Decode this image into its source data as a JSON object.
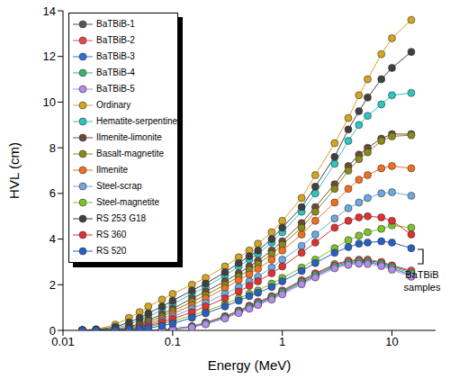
{
  "chart_data": {
    "type": "line",
    "x_label": "Energy (MeV)",
    "y_label": "HVL (cm)",
    "log": "x",
    "marker": "circle",
    "legend": "top-left",
    "grid": false,
    "x": [
      0.015,
      0.02,
      0.03,
      0.04,
      0.05,
      0.06,
      0.08,
      0.1,
      0.15,
      0.2,
      0.3,
      0.4,
      0.5,
      0.6,
      0.8,
      1,
      1.5,
      2,
      3,
      4,
      5,
      6,
      8,
      10,
      15
    ],
    "xlim": [
      0.01,
      25
    ],
    "xticks": [
      0.01,
      0.1,
      1,
      10
    ],
    "ylim": [
      0,
      14
    ],
    "yticks": [
      0,
      2,
      4,
      6,
      8,
      10,
      12,
      14
    ],
    "annotations": [
      {
        "text": "BaTBiB samples"
      }
    ],
    "series": [
      {
        "name": "BaTBiB-1",
        "color": "#555555",
        "values": [
          0,
          0,
          0,
          0,
          0,
          0.01,
          0.03,
          0.06,
          0.17,
          0.33,
          0.6,
          0.85,
          1.05,
          1.22,
          1.47,
          1.72,
          2.17,
          2.47,
          2.87,
          3.02,
          3.07,
          3.06,
          2.97,
          2.82,
          2.58
        ]
      },
      {
        "name": "BaTBiB-2",
        "color": "#e8474a",
        "values": [
          0,
          0,
          0,
          0,
          0,
          0.01,
          0.03,
          0.07,
          0.18,
          0.35,
          0.62,
          0.87,
          1.08,
          1.25,
          1.5,
          1.75,
          2.2,
          2.5,
          2.9,
          3.06,
          3.1,
          3.1,
          3.0,
          2.85,
          2.62
        ]
      },
      {
        "name": "BaTBiB-3",
        "color": "#2f6fd1",
        "values": [
          0,
          0,
          0,
          0,
          0,
          0.01,
          0.02,
          0.05,
          0.15,
          0.3,
          0.56,
          0.8,
          1.0,
          1.16,
          1.4,
          1.64,
          2.08,
          2.38,
          2.78,
          2.93,
          2.98,
          2.97,
          2.88,
          2.72,
          2.42
        ]
      },
      {
        "name": "BaTBiB-4",
        "color": "#3cb371",
        "values": [
          0,
          0,
          0,
          0,
          0,
          0.01,
          0.03,
          0.06,
          0.16,
          0.32,
          0.58,
          0.83,
          1.03,
          1.19,
          1.44,
          1.68,
          2.12,
          2.42,
          2.82,
          2.97,
          3.02,
          3.01,
          2.92,
          2.77,
          2.5
        ]
      },
      {
        "name": "BaTBiB-5",
        "color": "#b48be6",
        "values": [
          0,
          0,
          0,
          0,
          0,
          0.01,
          0.02,
          0.04,
          0.13,
          0.27,
          0.52,
          0.76,
          0.95,
          1.11,
          1.35,
          1.58,
          2.02,
          2.32,
          2.72,
          2.87,
          2.92,
          2.91,
          2.82,
          2.66,
          2.35
        ]
      },
      {
        "name": "Ordinary",
        "color": "#d4a520",
        "values": [
          0.02,
          0.05,
          0.25,
          0.55,
          0.8,
          1.05,
          1.35,
          1.6,
          2.0,
          2.3,
          2.8,
          3.2,
          3.5,
          3.8,
          4.3,
          4.8,
          5.8,
          6.8,
          8.2,
          9.3,
          10.3,
          11.0,
          12.1,
          12.8,
          13.6
        ]
      },
      {
        "name": "Hematite-serpentine",
        "color": "#2ec4c4",
        "values": [
          0.01,
          0.02,
          0.1,
          0.25,
          0.45,
          0.6,
          0.9,
          1.15,
          1.6,
          1.9,
          2.4,
          2.8,
          3.1,
          3.35,
          3.85,
          4.3,
          5.2,
          6.0,
          7.3,
          8.3,
          9.0,
          9.4,
          9.9,
          10.3,
          10.4
        ]
      },
      {
        "name": "Ilmenite-limonite",
        "color": "#6b4a3a",
        "values": [
          0,
          0.01,
          0.05,
          0.15,
          0.3,
          0.45,
          0.7,
          0.95,
          1.4,
          1.7,
          2.15,
          2.5,
          2.8,
          3.05,
          3.5,
          3.9,
          4.7,
          5.4,
          6.4,
          7.2,
          7.7,
          8.0,
          8.4,
          8.6,
          8.6
        ]
      },
      {
        "name": "Basalt-magnetite",
        "color": "#8a8a1a",
        "values": [
          0,
          0.01,
          0.04,
          0.12,
          0.25,
          0.38,
          0.6,
          0.85,
          1.25,
          1.55,
          2.0,
          2.35,
          2.65,
          2.9,
          3.35,
          3.75,
          4.5,
          5.2,
          6.2,
          7.0,
          7.5,
          7.8,
          8.3,
          8.5,
          8.55
        ]
      },
      {
        "name": "Ilmenite",
        "color": "#f07020",
        "values": [
          0,
          0.01,
          0.03,
          0.1,
          0.2,
          0.3,
          0.5,
          0.72,
          1.1,
          1.4,
          1.85,
          2.2,
          2.45,
          2.7,
          3.1,
          3.5,
          4.2,
          4.8,
          5.6,
          6.2,
          6.6,
          6.8,
          7.1,
          7.2,
          7.1
        ]
      },
      {
        "name": "Steel-scrap",
        "color": "#6fa8dc",
        "values": [
          0,
          0,
          0.02,
          0.08,
          0.16,
          0.25,
          0.42,
          0.6,
          0.95,
          1.2,
          1.6,
          1.9,
          2.15,
          2.35,
          2.75,
          3.1,
          3.7,
          4.2,
          4.9,
          5.35,
          5.6,
          5.8,
          6.0,
          6.05,
          5.9
        ]
      },
      {
        "name": "Steel-magnetite",
        "color": "#7cc42a",
        "values": [
          0,
          0,
          0.01,
          0.05,
          0.1,
          0.16,
          0.28,
          0.4,
          0.65,
          0.85,
          1.15,
          1.4,
          1.6,
          1.75,
          2.05,
          2.3,
          2.75,
          3.1,
          3.6,
          3.95,
          4.15,
          4.3,
          4.45,
          4.6,
          4.5
        ]
      },
      {
        "name": "RS 253 G18",
        "color": "#404040",
        "values": [
          0.01,
          0.03,
          0.15,
          0.35,
          0.55,
          0.75,
          1.05,
          1.3,
          1.75,
          2.05,
          2.55,
          2.95,
          3.25,
          3.5,
          4.0,
          4.5,
          5.4,
          6.3,
          7.6,
          8.8,
          9.6,
          10.2,
          11.0,
          11.5,
          12.2
        ]
      },
      {
        "name": "RS 360",
        "color": "#e03030",
        "values": [
          0,
          0,
          0.02,
          0.06,
          0.13,
          0.2,
          0.35,
          0.5,
          0.8,
          1.05,
          1.4,
          1.7,
          1.95,
          2.15,
          2.5,
          2.8,
          3.4,
          3.85,
          4.5,
          4.8,
          4.95,
          5.0,
          4.95,
          4.8,
          4.2
        ]
      },
      {
        "name": "RS 520",
        "color": "#2860c0",
        "values": [
          0,
          0,
          0.01,
          0.03,
          0.06,
          0.1,
          0.2,
          0.3,
          0.55,
          0.75,
          1.05,
          1.3,
          1.5,
          1.65,
          1.9,
          2.15,
          2.6,
          2.95,
          3.4,
          3.65,
          3.8,
          3.85,
          3.9,
          3.85,
          3.6
        ]
      }
    ]
  }
}
